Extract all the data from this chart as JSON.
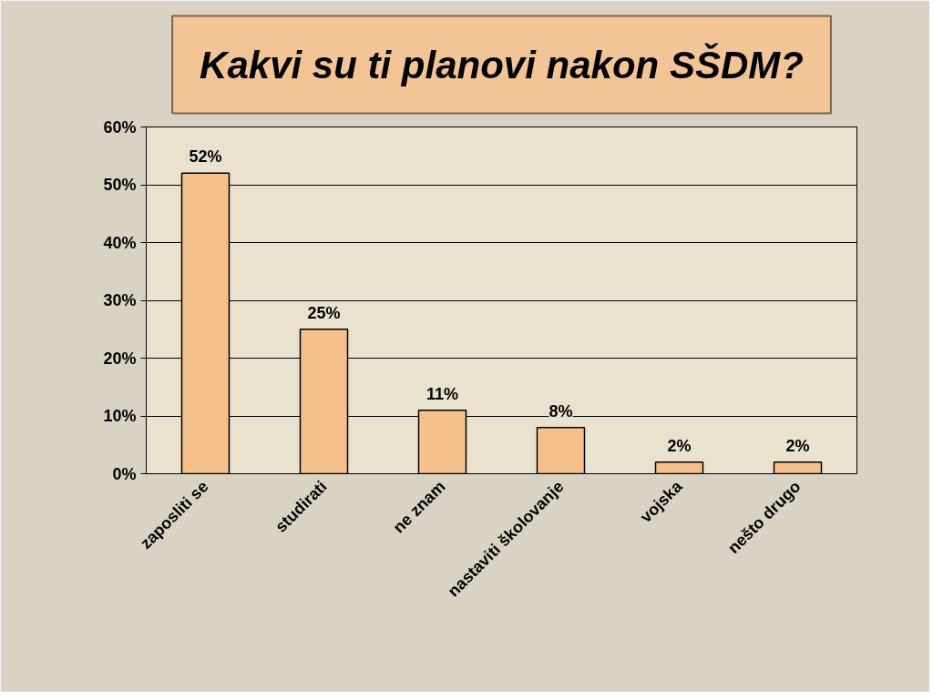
{
  "chart_data": {
    "type": "bar",
    "title": "Kakvi su ti planovi nakon SŠDM?",
    "categories": [
      "zaposliti se",
      "studirati",
      "ne znam",
      "nastaviti školovanje",
      "vojska",
      "nešto drugo"
    ],
    "values": [
      52,
      25,
      11,
      8,
      2,
      2
    ],
    "value_labels": [
      "52%",
      "25%",
      "11%",
      "8%",
      "2%",
      "2%"
    ],
    "color": "#f5c08c",
    "ylim": [
      0,
      60
    ],
    "yticks": [
      {
        "value": 0,
        "label": "0%"
      },
      {
        "value": 10,
        "label": "10%"
      },
      {
        "value": 20,
        "label": "20%"
      },
      {
        "value": 30,
        "label": "30%"
      },
      {
        "value": 40,
        "label": "40%"
      },
      {
        "value": 50,
        "label": "50%"
      },
      {
        "value": 60,
        "label": "60%"
      }
    ],
    "grid": "y"
  }
}
